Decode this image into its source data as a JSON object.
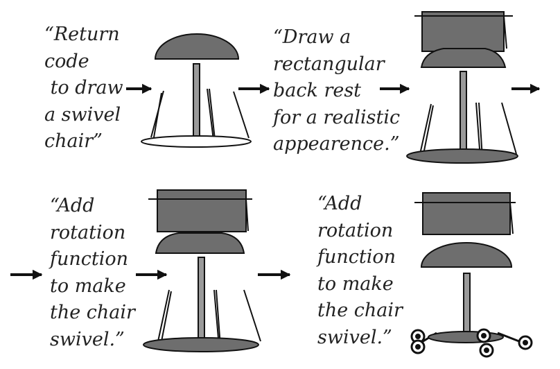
{
  "captions": {
    "c1": [
      "“Return",
      "code",
      " to draw",
      "a swivel",
      "chair”"
    ],
    "c2": [
      "“Draw a",
      "rectangular",
      "back rest",
      "for a realistic",
      "appearence.”"
    ],
    "c3": [
      "“Add",
      "rotation",
      "function",
      "to make",
      "the chair",
      "swivel.”"
    ],
    "c4": [
      "“Add",
      "rotation",
      "function",
      "to make",
      "the chair",
      "swivel.”"
    ]
  },
  "colors": {
    "dark_fill": "#6e6e6e",
    "pole_fill": "#9a9a9a",
    "stroke": "#111111",
    "base_white": "#ffffff"
  },
  "icons": [
    "right-arrow-icon",
    "chair-drawing"
  ]
}
